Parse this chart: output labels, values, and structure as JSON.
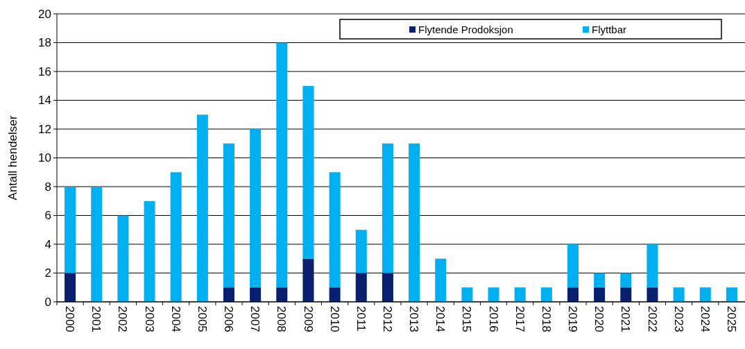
{
  "chart_data": {
    "type": "bar",
    "stacked": true,
    "ylabel": "Antall hendelser",
    "categories": [
      "2000",
      "2001",
      "2002",
      "2003",
      "2004",
      "2005",
      "2006",
      "2007",
      "2008",
      "2009",
      "2010",
      "2011",
      "2012",
      "2013",
      "2014",
      "2015",
      "2016",
      "2017",
      "2018",
      "2019",
      "2020",
      "2021",
      "2022",
      "2023",
      "2024",
      "2025"
    ],
    "series": [
      {
        "name": "Flytende Prodoksjon",
        "color": "#0a1f6e",
        "values": [
          2,
          0,
          0,
          0,
          0,
          0,
          1,
          1,
          1,
          3,
          1,
          2,
          2,
          0,
          0,
          0,
          0,
          0,
          0,
          1,
          1,
          1,
          1,
          0,
          0,
          0
        ]
      },
      {
        "name": "Flyttbar",
        "color": "#00b0f0",
        "values": [
          6,
          8,
          6,
          7,
          9,
          13,
          10,
          11,
          17,
          12,
          8,
          3,
          9,
          11,
          3,
          1,
          1,
          1,
          1,
          3,
          1,
          1,
          3,
          1,
          1,
          1
        ]
      }
    ],
    "ylim": [
      0,
      20
    ],
    "yticks": [
      0,
      2,
      4,
      6,
      8,
      10,
      12,
      14,
      16,
      18,
      20
    ],
    "grid": "y",
    "legend": "top right"
  }
}
